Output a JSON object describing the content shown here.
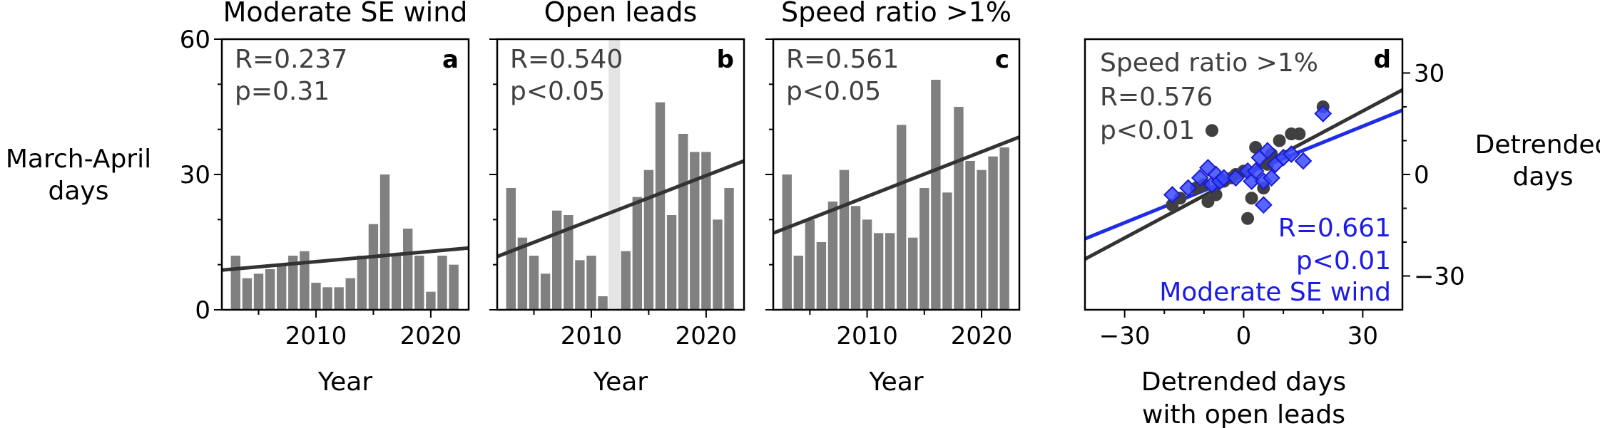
{
  "chart_data": [
    {
      "type": "bar",
      "title": "Moderate SE wind",
      "panel_label": "a",
      "xlabel": "Year",
      "ylabel": "March-April days",
      "x": [
        2003,
        2004,
        2005,
        2006,
        2007,
        2008,
        2009,
        2010,
        2011,
        2012,
        2013,
        2014,
        2015,
        2016,
        2017,
        2018,
        2019,
        2020,
        2021,
        2022
      ],
      "values": [
        12,
        7,
        8,
        9,
        10,
        12,
        13,
        6,
        5,
        5,
        7,
        12,
        19,
        30,
        12,
        18,
        12,
        4,
        12,
        10
      ],
      "trend": [
        8.8,
        13.7
      ],
      "stats": [
        "R=0.237",
        "p=0.31"
      ],
      "xlim": [
        2001.8,
        2023.3
      ],
      "ylim": [
        0,
        60
      ],
      "xticks": [
        "2010",
        "2020"
      ],
      "yticks": [
        "0",
        "30",
        "60"
      ],
      "colors": {
        "bars": "#808080",
        "trend": "#333333"
      }
    },
    {
      "type": "bar",
      "title": "Open leads",
      "panel_label": "b",
      "xlabel": "Year",
      "x": [
        2003,
        2004,
        2005,
        2006,
        2007,
        2008,
        2009,
        2010,
        2011,
        2012,
        2013,
        2014,
        2015,
        2016,
        2017,
        2018,
        2019,
        2020,
        2021,
        2022
      ],
      "values": [
        27,
        16,
        12,
        8,
        22,
        21,
        11,
        12,
        3,
        0,
        13,
        25,
        31,
        46,
        21,
        39,
        35,
        35,
        20,
        27
      ],
      "highlight_year": 2012,
      "trend": [
        11.8,
        33.0
      ],
      "stats": [
        "R=0.540",
        "p<0.05"
      ],
      "xlim": [
        2001.8,
        2023.3
      ],
      "ylim": [
        0,
        60
      ],
      "xticks": [
        "2010",
        "2020"
      ],
      "colors": {
        "bars": "#808080",
        "trend": "#333333",
        "highlight": "#e4e4e4"
      }
    },
    {
      "type": "bar",
      "title": "Speed ratio >1%",
      "panel_label": "c",
      "xlabel": "Year",
      "x": [
        2003,
        2004,
        2005,
        2006,
        2007,
        2008,
        2009,
        2010,
        2011,
        2012,
        2013,
        2014,
        2015,
        2016,
        2017,
        2018,
        2019,
        2020,
        2021,
        2022
      ],
      "values": [
        30,
        12,
        20,
        15,
        24,
        31,
        23,
        20,
        17,
        17,
        41,
        16,
        27,
        51,
        26,
        45,
        33,
        31,
        34,
        36
      ],
      "trend": [
        17.0,
        38.3
      ],
      "stats": [
        "R=0.561",
        "p<0.05"
      ],
      "xlim": [
        2001.8,
        2023.3
      ],
      "ylim": [
        0,
        60
      ],
      "xticks": [
        "2010",
        "2020"
      ],
      "colors": {
        "bars": "#808080",
        "trend": "#333333"
      }
    },
    {
      "type": "scatter",
      "panel_label": "d",
      "xlabel": "Detrended days with open leads",
      "ylabel": "Detrended days",
      "xlim": [
        -40,
        40
      ],
      "ylim": [
        -40,
        40
      ],
      "xticks": [
        "−30",
        "0",
        "30"
      ],
      "yticks": [
        "−30",
        "0",
        "30"
      ],
      "series": [
        {
          "name": "Speed ratio >1%",
          "marker": "circle",
          "color": "#404040",
          "stats": [
            "R=0.576",
            "p<0.01"
          ],
          "points": [
            [
              -18,
              -9
            ],
            [
              -16,
              -7
            ],
            [
              -12,
              -4
            ],
            [
              -10,
              -3
            ],
            [
              -9,
              -8
            ],
            [
              -7,
              -6
            ],
            [
              -8,
              13
            ],
            [
              -5,
              -2
            ],
            [
              -3,
              -1
            ],
            [
              -2,
              0
            ],
            [
              0,
              1
            ],
            [
              1,
              -13
            ],
            [
              2,
              -7
            ],
            [
              3,
              8
            ],
            [
              5,
              -4
            ],
            [
              6,
              3
            ],
            [
              7,
              6
            ],
            [
              9,
              10
            ],
            [
              12,
              12
            ],
            [
              14,
              12
            ],
            [
              20,
              20
            ]
          ],
          "fit": [
            -1.8,
            1.8,
            25
          ]
        },
        {
          "name": "Moderate SE wind",
          "marker": "diamond",
          "color": "#3b4bff",
          "stats": [
            "R=0.661",
            "p<0.01"
          ],
          "points": [
            [
              -18,
              -6
            ],
            [
              -14,
              -4
            ],
            [
              -11,
              -1
            ],
            [
              -9,
              2
            ],
            [
              -8,
              -3
            ],
            [
              -7,
              0
            ],
            [
              -6,
              -2
            ],
            [
              -5,
              -1
            ],
            [
              -2,
              -1
            ],
            [
              1,
              1
            ],
            [
              2,
              -2
            ],
            [
              3,
              1
            ],
            [
              4,
              5
            ],
            [
              5,
              -2
            ],
            [
              5,
              -9
            ],
            [
              6,
              7
            ],
            [
              7,
              -1
            ],
            [
              8,
              3
            ],
            [
              10,
              5
            ],
            [
              12,
              6
            ],
            [
              15,
              4
            ],
            [
              20,
              18
            ]
          ],
          "fit": [
            -1.5,
            1.5,
            19
          ]
        }
      ],
      "colors": {
        "fit_dark": "#333333",
        "fit_blue": "#1f2ee6"
      }
    }
  ]
}
